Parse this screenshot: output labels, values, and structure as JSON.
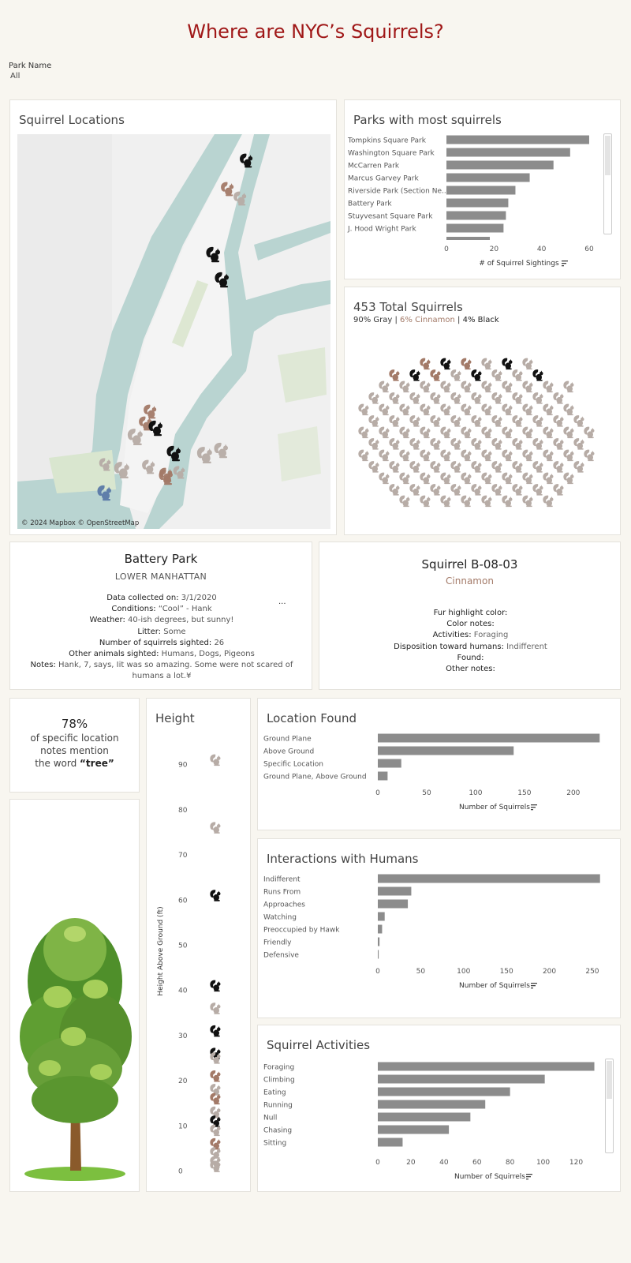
{
  "title": "Where are NYC’s Squirrels?",
  "filter": {
    "label": "Park Name",
    "value": "All"
  },
  "colors": {
    "gray": "#b7aca6",
    "cinnamon": "#a37a68",
    "black": "#111111",
    "bar": "#8c8c8c",
    "title": "#a01818"
  },
  "map": {
    "title": "Squirrel Locations",
    "attribution": "© 2024 Mapbox © OpenStreetMap",
    "markers": [
      {
        "color": "black"
      },
      {
        "color": "cinnamon"
      },
      {
        "color": "gray"
      },
      {
        "color": "black"
      },
      {
        "color": "black"
      },
      {
        "color": "cinnamon"
      },
      {
        "color": "cinnamon"
      },
      {
        "color": "black"
      },
      {
        "color": "gray"
      },
      {
        "color": "black"
      },
      {
        "color": "gray"
      },
      {
        "color": "cinnamon"
      },
      {
        "color": "gray"
      },
      {
        "color": "gray"
      },
      {
        "color": "gray"
      },
      {
        "color": "gray"
      },
      {
        "color": "cinnamon"
      },
      {
        "color": "gray"
      },
      {
        "color": "selected"
      }
    ]
  },
  "parks": {
    "title": "Parks with most squirrels",
    "xlabel": "# of Squirrel Sightings",
    "sort_icon": "sort-icon",
    "chart_data": {
      "type": "bar",
      "categories": [
        "Tompkins Square Park",
        "Washington Square Park",
        "McCarren Park",
        "Marcus Garvey Park",
        "Riverside Park (Section Ne...",
        "Battery Park",
        "Stuyvesant Square Park",
        "J. Hood Wright Park"
      ],
      "values": [
        60,
        52,
        45,
        35,
        29,
        26,
        25,
        24
      ],
      "xlabel": "# of Squirrel Sightings",
      "xticks": [
        0,
        20,
        40,
        60
      ],
      "xlim": [
        0,
        62
      ]
    }
  },
  "totals": {
    "title": "453 Total Squirrels",
    "gray": "90% Gray",
    "sep1": " | ",
    "cinnamon": "6% Cinnamon",
    "sep2": " | ",
    "black": "4% Black",
    "chart_data": {
      "type": "unit",
      "gray_pct": 90,
      "cinnamon_pct": 6,
      "black_pct": 4,
      "total": 453
    }
  },
  "park_detail": {
    "name": "Battery Park",
    "area": "LOWER MANHATTAN",
    "rows": [
      {
        "label": "Data collected on:",
        "value": "3/1/2020"
      },
      {
        "label": "Conditions:",
        "value": "“Cool” - Hank"
      },
      {
        "label": "Weather:",
        "value": "40-ish degrees, but sunny!"
      },
      {
        "label": "Litter:",
        "value": "Some"
      },
      {
        "label": "Number of squirrels sighted:",
        "value": "26"
      },
      {
        "label": "Other animals sighted:",
        "value": "Humans, Dogs, Pigeons"
      }
    ],
    "notes_label": "Notes:",
    "notes_value": "Hank, 7, says, Iit was so amazing. Some were not scared of humans a lot.¥",
    "ellipsis": "..."
  },
  "squirrel": {
    "id": "Squirrel B-08-03",
    "color": "Cinnamon",
    "rows": [
      {
        "label": "Fur highlight color:",
        "value": ""
      },
      {
        "label": "Color notes:",
        "value": ""
      },
      {
        "label": "Activities:",
        "value": "Foraging"
      },
      {
        "label": "Disposition toward humans:",
        "value": "Indifferent"
      },
      {
        "label": "Found:",
        "value": ""
      },
      {
        "label": "Other notes:",
        "value": ""
      }
    ]
  },
  "tree_stat": {
    "pct": "78%",
    "line1": "of specific location",
    "line2": "notes mention",
    "line3_prefix": "the word ",
    "line3_word": "“tree”"
  },
  "height": {
    "title": "Height",
    "ylabel": "Height Above Ground (ft)",
    "chart_data": {
      "type": "scatter",
      "yticks": [
        0,
        10,
        20,
        30,
        40,
        50,
        60,
        70,
        80,
        90
      ],
      "ylim": [
        0,
        93
      ],
      "points": [
        {
          "y": 91,
          "color": "gray"
        },
        {
          "y": 76,
          "color": "gray"
        },
        {
          "y": 61,
          "color": "black"
        },
        {
          "y": 41,
          "color": "black"
        },
        {
          "y": 36,
          "color": "gray"
        },
        {
          "y": 31,
          "color": "black"
        },
        {
          "y": 26,
          "color": "black"
        },
        {
          "y": 25,
          "color": "gray"
        },
        {
          "y": 21,
          "color": "cinnamon"
        },
        {
          "y": 18,
          "color": "gray"
        },
        {
          "y": 16,
          "color": "cinnamon"
        },
        {
          "y": 13,
          "color": "gray"
        },
        {
          "y": 11,
          "color": "black"
        },
        {
          "y": 9,
          "color": "gray"
        },
        {
          "y": 6,
          "color": "cinnamon"
        },
        {
          "y": 4,
          "color": "gray"
        },
        {
          "y": 2,
          "color": "gray"
        },
        {
          "y": 1,
          "color": "gray"
        }
      ]
    }
  },
  "location": {
    "title": "Location Found",
    "xlabel": "Number of Squirrels",
    "chart_data": {
      "type": "bar",
      "categories": [
        "Ground Plane",
        "Above Ground",
        "Specific Location",
        "Ground Plane, Above Ground"
      ],
      "values": [
        227,
        139,
        24,
        10
      ],
      "xticks": [
        0,
        50,
        100,
        150,
        200
      ],
      "xlim": [
        0,
        230
      ]
    }
  },
  "interactions": {
    "title": "Interactions with Humans",
    "xlabel": "Number of Squirrels",
    "chart_data": {
      "type": "bar",
      "categories": [
        "Indifferent",
        "Runs From",
        "Approaches",
        "Watching",
        "Preoccupied by Hawk",
        "Friendly",
        "Defensive"
      ],
      "values": [
        259,
        39,
        35,
        8,
        5,
        2,
        1
      ],
      "xticks": [
        0,
        50,
        100,
        150,
        200,
        250
      ],
      "xlim": [
        0,
        262
      ]
    }
  },
  "activities": {
    "title": "Squirrel Activities",
    "xlabel": "Number of Squirrels",
    "chart_data": {
      "type": "bar",
      "categories": [
        "Foraging",
        "Climbing",
        "Eating",
        "Running",
        "Null",
        "Chasing",
        "Sitting"
      ],
      "values": [
        131,
        101,
        80,
        65,
        56,
        43,
        15
      ],
      "xticks": [
        0,
        20,
        40,
        60,
        80,
        100,
        120
      ],
      "xlim": [
        0,
        136
      ]
    }
  }
}
